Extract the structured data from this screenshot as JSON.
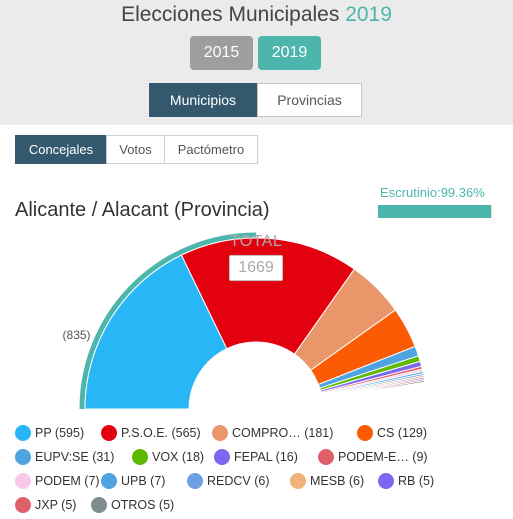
{
  "header": {
    "title_prefix": "Elecciones Municipales",
    "title_year": "2019"
  },
  "years": [
    {
      "label": "2015",
      "active": false
    },
    {
      "label": "2019",
      "active": true
    }
  ],
  "scope_tabs": [
    {
      "label": "Municipios",
      "active": true
    },
    {
      "label": "Provincias",
      "active": false
    }
  ],
  "view_tabs": [
    {
      "label": "Concejales",
      "active": true
    },
    {
      "label": "Votos",
      "active": false
    },
    {
      "label": "Pactómetro",
      "active": false
    }
  ],
  "region": {
    "title": "Alicante / Alacant (Provincia)"
  },
  "scrutiny": {
    "label": "Escrutinio:99.36%",
    "percent": 99.36
  },
  "majority_marker": "(835)",
  "total": {
    "label": "TOTAL",
    "value": "1669"
  },
  "colors": {
    "accent": "#4db6ac",
    "active_tab": "#34596f",
    "inactive_year": "#9e9e9e"
  },
  "chart_data": {
    "type": "pie",
    "shape": "semicircle",
    "total": 1669,
    "majority_label": "(835)",
    "series": [
      {
        "name": "PP",
        "value": 595,
        "color": "#29b6f6"
      },
      {
        "name": "P.S.O.E.",
        "value": 565,
        "color": "#e3000f"
      },
      {
        "name": "COMPRO...",
        "value": 181,
        "color": "#e9966a"
      },
      {
        "name": "CS",
        "value": 129,
        "color": "#fb5b05"
      },
      {
        "name": "EUPV:SE",
        "value": 31,
        "color": "#4fa3e0"
      },
      {
        "name": "VOX",
        "value": 18,
        "color": "#5cb900"
      },
      {
        "name": "FEPAL",
        "value": 16,
        "color": "#7b68ee"
      },
      {
        "name": "PODEM-E...",
        "value": 9,
        "color": "#e0606a"
      },
      {
        "name": "PODEM",
        "value": 7,
        "color": "#f9c8e9"
      },
      {
        "name": "UPB",
        "value": 7,
        "color": "#4fa3e0"
      },
      {
        "name": "REDCV",
        "value": 6,
        "color": "#6e9fe0"
      },
      {
        "name": "MESB",
        "value": 6,
        "color": "#f0b27a"
      },
      {
        "name": "RB",
        "value": 5,
        "color": "#7b68ee"
      },
      {
        "name": "JXP",
        "value": 5,
        "color": "#e0606a"
      },
      {
        "name": "OTROS",
        "value": 5,
        "color": "#7f8c8d"
      }
    ],
    "legend": [
      {
        "party": "PP",
        "count": "(595)"
      },
      {
        "party": "P.S.O.E.",
        "count": "(565)"
      },
      {
        "party": "COMPRO…",
        "count": "(181)"
      },
      {
        "party": "CS",
        "count": "(129)"
      },
      {
        "party": "EUPV:SE",
        "count": "(31)"
      },
      {
        "party": "VOX",
        "count": "(18)"
      },
      {
        "party": "FEPAL",
        "count": "(16)"
      },
      {
        "party": "PODEM-E…",
        "count": "(9)"
      },
      {
        "party": "PODEM",
        "count": "(7)"
      },
      {
        "party": "UPB",
        "count": "(7)"
      },
      {
        "party": "REDCV",
        "count": "(6)"
      },
      {
        "party": "MESB",
        "count": "(6)"
      },
      {
        "party": "RB",
        "count": "(5)"
      },
      {
        "party": "JXP",
        "count": "(5)"
      },
      {
        "party": "OTROS",
        "count": "(5)"
      }
    ]
  }
}
